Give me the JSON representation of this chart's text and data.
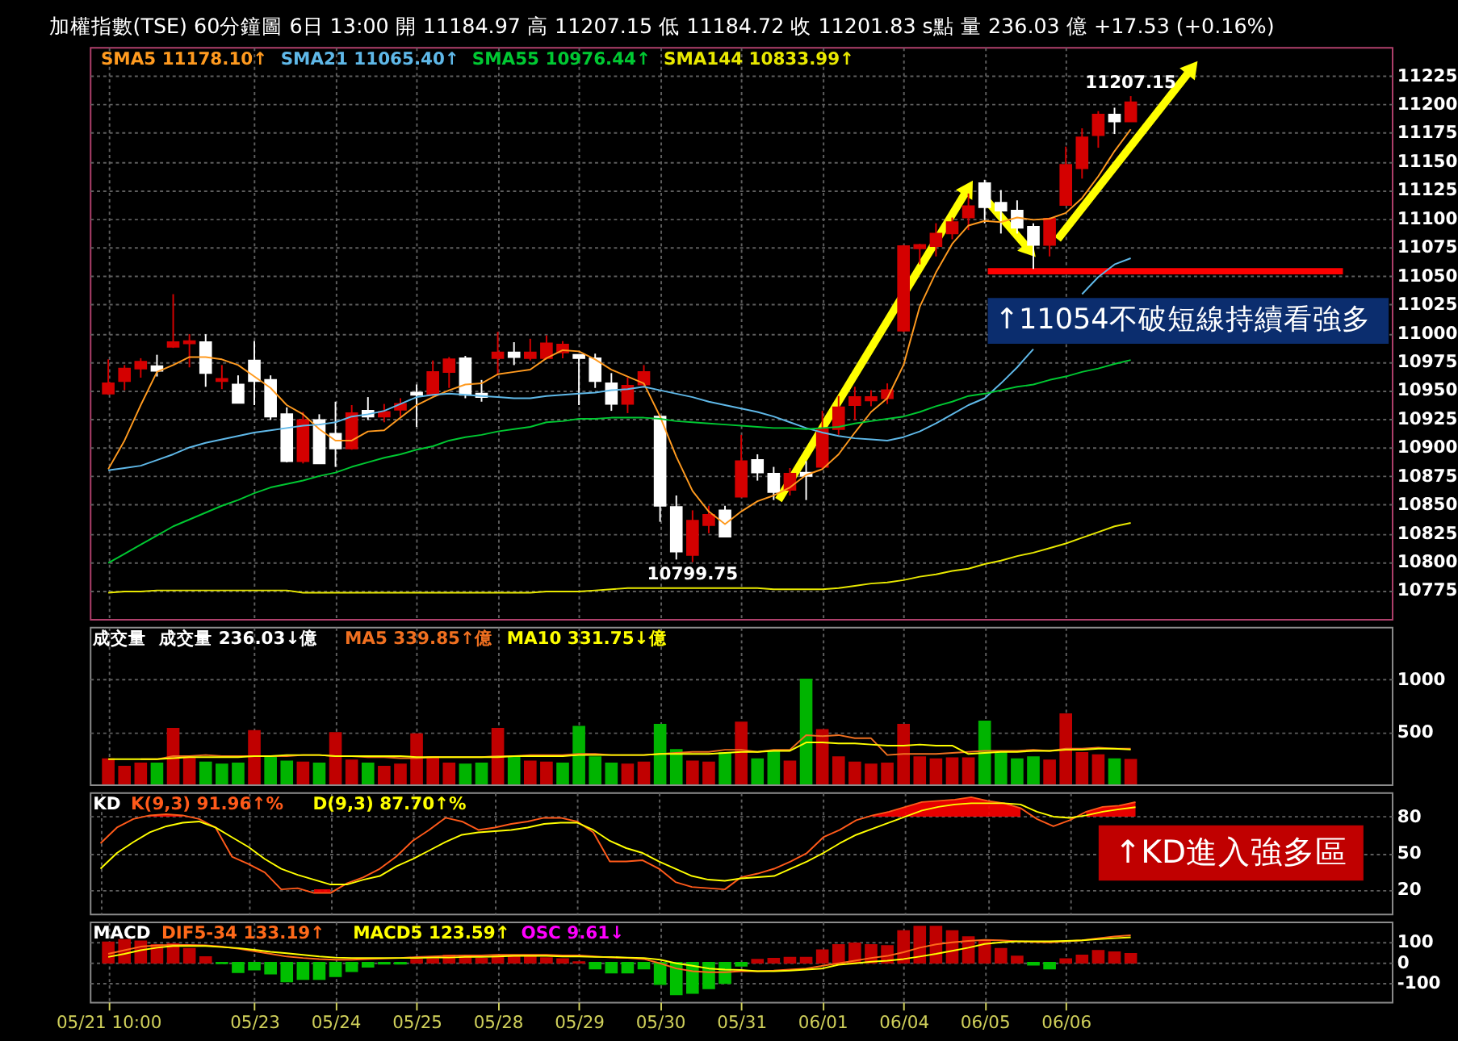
{
  "chart_data": [
    {
      "type": "candlestick",
      "title": "加權指數(TSE)  60分鐘圖  6日 13:00  開 11184.97  高 11207.15  低 11184.72  收 11201.83 s點  量 236.03 億  +17.53 (+0.16%)",
      "categories": [
        null,
        null,
        null,
        null,
        null,
        null,
        null,
        null,
        null,
        null,
        null,
        null,
        null,
        null,
        null,
        null,
        null,
        null,
        null,
        null,
        null,
        null,
        null,
        null,
        null,
        null,
        null,
        null,
        null,
        null,
        null,
        null,
        null,
        null,
        null,
        null,
        null,
        null,
        null,
        null,
        null,
        null,
        null,
        null,
        null,
        null,
        null,
        null,
        null,
        null,
        null,
        null,
        null,
        null,
        null,
        null,
        null,
        null,
        null,
        null,
        null,
        null,
        null,
        null
      ],
      "ohlc": [
        [
          10947,
          10977,
          10946,
          10956
        ],
        [
          10958,
          10972,
          10950,
          10969
        ],
        [
          10969,
          10978,
          10961,
          10975
        ],
        [
          10971,
          10981,
          10962,
          10967
        ],
        [
          10988,
          11034,
          10987,
          10992
        ],
        [
          10991,
          10999,
          10970,
          10993
        ],
        [
          10992,
          10999,
          10953,
          10965
        ],
        [
          10958,
          10972,
          10951,
          10960
        ],
        [
          10955,
          10963,
          10939,
          10939
        ],
        [
          10976,
          10993,
          10937,
          10958
        ],
        [
          10959,
          10963,
          10924,
          10927
        ],
        [
          10929,
          10935,
          10887,
          10888
        ],
        [
          10888,
          10931,
          10886,
          10924
        ],
        [
          10924,
          10929,
          10886,
          10886
        ],
        [
          10912,
          10940,
          10883,
          10899
        ],
        [
          10899,
          10937,
          10898,
          10930
        ],
        [
          10932,
          10944,
          10924,
          10927
        ],
        [
          10927,
          10938,
          10922,
          10931
        ],
        [
          10933,
          10943,
          10927,
          10938
        ],
        [
          10948,
          10955,
          10918,
          10946
        ],
        [
          10946,
          10976,
          10945,
          10966
        ],
        [
          10966,
          10979,
          10952,
          10977
        ],
        [
          10978,
          10980,
          10943,
          10946
        ],
        [
          10947,
          10959,
          10940,
          10944
        ],
        [
          10978,
          11001,
          10963,
          10983
        ],
        [
          10983,
          10992,
          10972,
          10979
        ],
        [
          10978,
          10995,
          10976,
          10983
        ],
        [
          10978,
          10998,
          10977,
          10991
        ],
        [
          10983,
          10993,
          10978,
          10990
        ],
        [
          10981,
          10981,
          10937,
          10978
        ],
        [
          10978,
          10982,
          10952,
          10958
        ],
        [
          10956,
          10965,
          10932,
          10938
        ],
        [
          10938,
          10961,
          10930,
          10954
        ],
        [
          10955,
          10972,
          10953,
          10966
        ],
        [
          10927,
          10927,
          10835,
          10849
        ],
        [
          10848,
          10858,
          10802,
          10809
        ],
        [
          10806,
          10845,
          10799.75,
          10836
        ],
        [
          10832,
          10849,
          10825,
          10841
        ],
        [
          10845,
          10849,
          10822,
          10822
        ],
        [
          10857,
          10911,
          10857,
          10888
        ],
        [
          10889,
          10894,
          10871,
          10878
        ],
        [
          10877,
          10883,
          10854,
          10861
        ],
        [
          10863,
          10882,
          10858,
          10877
        ],
        [
          10878,
          10888,
          10854,
          10875
        ],
        [
          10883,
          10932,
          10881,
          10916
        ],
        [
          10916,
          10945,
          10911,
          10935
        ],
        [
          10937,
          10953,
          10924,
          10944
        ],
        [
          10941,
          10950,
          10936,
          10944
        ],
        [
          10943,
          10956,
          10938,
          10950
        ],
        [
          11002,
          11077,
          11001,
          11076
        ],
        [
          11074,
          11078,
          11060,
          11077
        ],
        [
          11076,
          11096,
          11067,
          11087
        ],
        [
          11087,
          11101,
          11082,
          11097
        ],
        [
          11101,
          11122,
          11090,
          11111
        ],
        [
          11131,
          11134,
          11096,
          11110
        ],
        [
          11114,
          11125,
          11087,
          11107
        ],
        [
          11107,
          11116,
          11087,
          11092
        ],
        [
          11093,
          11096,
          11056,
          11077
        ],
        [
          11077,
          11101,
          11067,
          11100
        ],
        [
          11112,
          11163,
          11112,
          11147
        ],
        [
          11144,
          11179,
          11135,
          11171
        ],
        [
          11173,
          11194,
          11162,
          11191
        ],
        [
          11191,
          11197,
          11174,
          11185
        ],
        [
          11184.97,
          11207.15,
          11184.72,
          11201.83
        ]
      ],
      "colors": [
        "#d40000",
        "#d40000",
        "#d40000",
        "#ffffff",
        "#d40000",
        "#d40000",
        "#ffffff",
        "#d40000",
        "#ffffff",
        "#ffffff",
        "#ffffff",
        "#ffffff",
        "#d40000",
        "#ffffff",
        "#ffffff",
        "#d40000",
        "#ffffff",
        "#d40000",
        "#d40000",
        "#ffffff",
        "#d40000",
        "#d40000",
        "#ffffff",
        "#ffffff",
        "#d40000",
        "#ffffff",
        "#d40000",
        "#d40000",
        "#d40000",
        "#ffffff",
        "#ffffff",
        "#ffffff",
        "#d40000",
        "#d40000",
        "#ffffff",
        "#ffffff",
        "#d40000",
        "#d40000",
        "#ffffff",
        "#d40000",
        "#ffffff",
        "#ffffff",
        "#d40000",
        "#ffffff",
        "#d40000",
        "#d40000",
        "#d40000",
        "#d40000",
        "#d40000",
        "#d40000",
        "#d40000",
        "#d40000",
        "#d40000",
        "#d40000",
        "#ffffff",
        "#ffffff",
        "#ffffff",
        "#ffffff",
        "#d40000",
        "#d40000",
        "#d40000",
        "#d40000",
        "#ffffff",
        "#d40000"
      ],
      "series": [
        {
          "name": "SMA5 11178.10↑",
          "type": "line",
          "color": "#ff9a1f",
          "values": [
            10881,
            10906,
            10937,
            10966,
            10972,
            10979,
            10979,
            10977,
            10972,
            10962,
            10952,
            10937,
            10929,
            10916,
            10906,
            10906,
            10914,
            10915,
            10926,
            10937,
            10944,
            10950,
            10955,
            10956,
            10964,
            10966,
            10968,
            10978,
            10985,
            10984,
            10977,
            10968,
            10962,
            10956,
            10927,
            10892,
            10862,
            10844,
            10833,
            10844,
            10853,
            10858,
            10865,
            10876,
            10881,
            10894,
            10913,
            10931,
            10943,
            10972,
            11023,
            11053,
            11078,
            11094,
            11098,
            11097,
            11101,
            11099,
            11100,
            11105,
            11118,
            11137,
            11159,
            11178.1
          ]
        },
        {
          "name": "SMA21 11065.40↑",
          "type": "line",
          "color": "#5fb8e8",
          "values": [
            10880,
            10882,
            10884,
            10889,
            10894,
            10900,
            10904,
            10907,
            10910,
            10913,
            10915,
            10917,
            10919,
            10920,
            10922,
            10927,
            10929,
            10932,
            10938,
            10944,
            10946,
            10947,
            10946,
            10945,
            10944,
            10943,
            10943,
            10945,
            10946,
            10947,
            10948,
            10950,
            10951,
            10953,
            10950,
            10947,
            10944,
            10940,
            10937,
            10934,
            10931,
            10927,
            10922,
            10917,
            10913,
            10910,
            10908,
            10907,
            10906,
            10909,
            10914,
            10921,
            10929,
            10937,
            10943,
            10956,
            10970,
            10986,
            null,
            null,
            11034,
            11049,
            11060,
            11065.4
          ]
        },
        {
          "name": "SMA55 10976.44↑",
          "type": "line",
          "color": "#00c832",
          "values": [
            10799,
            10807,
            10815,
            10823,
            10831,
            10837,
            10843,
            10849,
            10854,
            10860,
            10865,
            10868,
            10871,
            10875,
            10878,
            10883,
            10887,
            10891,
            10894,
            10898,
            10901,
            10906,
            10909,
            10911,
            10914,
            10916,
            10918,
            10922,
            10923,
            10925,
            10925,
            10926,
            10926,
            10926,
            10925,
            10923,
            10922,
            10921,
            10920,
            10919,
            10918,
            10917,
            10917,
            10916,
            10917,
            10918,
            10921,
            10923,
            10925,
            10927,
            10931,
            10936,
            10940,
            10945,
            10947,
            10950,
            10953,
            10955,
            10959,
            10962,
            10966,
            10969,
            10973,
            10976.44
          ]
        },
        {
          "name": "SMA144 10833.99↑",
          "type": "line",
          "color": "#e8e800",
          "values": [
            10773,
            10774,
            10774,
            10775,
            10775,
            10775,
            10775,
            10775,
            10775,
            10775,
            10775,
            10775,
            10773,
            10773,
            10773,
            10773,
            10773,
            10773,
            10773,
            10773,
            10773,
            10773,
            10773,
            10773,
            10773,
            10773,
            10773,
            10774,
            10774,
            10774,
            10775,
            10776,
            10777,
            10777,
            10777,
            10777,
            10777,
            10777,
            10777,
            10777,
            10777,
            10776,
            10776,
            10776,
            10776,
            10777,
            10779,
            10781,
            10782,
            10784,
            10787,
            10789,
            10792,
            10794,
            10798,
            10801,
            10805,
            10808,
            10812,
            10816,
            10821,
            10826,
            10831,
            10833.99
          ]
        }
      ],
      "ylim": [
        10750,
        11250
      ],
      "yticks": [
        10775,
        10800,
        10825,
        10850,
        10875,
        10900,
        10925,
        10950,
        10975,
        11000,
        11025,
        11050,
        11075,
        11100,
        11125,
        11150,
        11175,
        11200,
        11225
      ],
      "grid": true,
      "legend": "top left",
      "tick_labels": "y",
      "annotations": [
        {
          "text": "11207.15",
          "y": 11207.15
        },
        {
          "text": "10799.75",
          "y": 10799.75
        },
        {
          "text": "↑11054不破短線持續看強多",
          "y": 11054
        }
      ],
      "ref_lines": [
        {
          "axis": "y",
          "value": 11054,
          "color": "#ff0000"
        }
      ]
    },
    {
      "type": "bar",
      "title": "成交量",
      "subtitle": "成交量 236.03↓億",
      "categories": [
        null,
        null,
        null,
        null,
        null,
        null,
        null,
        null,
        null,
        null,
        null,
        null,
        null,
        null,
        null,
        null,
        null,
        null,
        null,
        null,
        null,
        null,
        null,
        null,
        null,
        null,
        null,
        null,
        null,
        null,
        null,
        null,
        null,
        null,
        null,
        null,
        null,
        null,
        null,
        null,
        null,
        null,
        null,
        null,
        null,
        null,
        null,
        null,
        null,
        null,
        null,
        null,
        null,
        null,
        null,
        null,
        null,
        null,
        null,
        null,
        null,
        null,
        null,
        null
      ],
      "series": [
        {
          "values": [
            240,
            170,
            200,
            200,
            530,
            250,
            210,
            190,
            200,
            510,
            260,
            220,
            210,
            200,
            490,
            230,
            200,
            170,
            190,
            480,
            260,
            200,
            190,
            200,
            530,
            260,
            220,
            210,
            200,
            550,
            260,
            200,
            190,
            210,
            570,
            330,
            220,
            210,
            300,
            590,
            240,
            320,
            220,
            1000,
            520,
            260,
            210,
            190,
            200,
            570,
            260,
            240,
            250,
            250,
            600,
            300,
            240,
            260,
            230,
            670,
            300,
            280,
            240,
            236.03
          ],
          "colors": [
            "#c00000",
            "#c00000",
            "#c00000",
            "#00b400",
            "#c00000",
            "#c00000",
            "#00b400",
            "#00b400",
            "#00b400",
            "#c00000",
            "#00b400",
            "#00b400",
            "#c00000",
            "#00b400",
            "#c00000",
            "#c00000",
            "#00b400",
            "#c00000",
            "#c00000",
            "#c00000",
            "#c00000",
            "#c00000",
            "#00b400",
            "#00b400",
            "#c00000",
            "#00b400",
            "#c00000",
            "#c00000",
            "#00b400",
            "#00b400",
            "#00b400",
            "#00b400",
            "#c00000",
            "#c00000",
            "#00b400",
            "#00b400",
            "#c00000",
            "#c00000",
            "#00b400",
            "#c00000",
            "#00b400",
            "#00b400",
            "#c00000",
            "#00b400",
            "#c00000",
            "#c00000",
            "#c00000",
            "#c00000",
            "#c00000",
            "#c00000",
            "#c00000",
            "#c00000",
            "#c00000",
            "#c00000",
            "#00b400",
            "#00b400",
            "#00b400",
            "#00b400",
            "#c00000",
            "#c00000",
            "#c00000",
            "#c00000",
            "#00b400",
            "#c00000"
          ]
        },
        {
          "name": "MA5 339.85↑億",
          "type": "line",
          "color": "#f07020",
          "values": [
            null,
            null,
            240,
            240,
            270,
            270,
            280,
            270,
            270,
            270,
            270,
            270,
            280,
            280,
            270,
            270,
            260,
            260,
            250,
            250,
            260,
            260,
            260,
            260,
            270,
            270,
            280,
            280,
            280,
            290,
            290,
            280,
            280,
            280,
            290,
            300,
            310,
            310,
            330,
            330,
            310,
            330,
            330,
            470,
            460,
            470,
            440,
            440,
            280,
            290,
            290,
            290,
            300,
            310,
            320,
            320,
            320,
            330,
            320,
            340,
            340,
            350,
            340,
            339.85
          ]
        },
        {
          "name": "MA10 331.75↓億",
          "type": "line",
          "color": "#ffff00",
          "values": [
            240,
            240,
            240,
            240,
            250,
            260,
            260,
            260,
            260,
            270,
            270,
            280,
            280,
            280,
            270,
            270,
            270,
            270,
            270,
            260,
            260,
            260,
            260,
            260,
            260,
            270,
            270,
            270,
            270,
            280,
            280,
            280,
            280,
            280,
            290,
            290,
            290,
            290,
            300,
            310,
            310,
            320,
            320,
            400,
            400,
            390,
            390,
            380,
            370,
            370,
            380,
            370,
            370,
            290,
            300,
            310,
            310,
            320,
            320,
            330,
            330,
            340,
            340,
            331.75
          ]
        }
      ],
      "ylim": [
        0,
        1500
      ],
      "yticks": [
        500,
        1000
      ],
      "grid": true,
      "legend": "top left",
      "tick_labels": "y"
    },
    {
      "type": "line",
      "title": "KD",
      "categories": [
        null,
        null,
        null,
        null,
        null,
        null,
        null,
        null,
        null,
        null,
        null,
        null,
        null,
        null,
        null,
        null,
        null,
        null,
        null,
        null,
        null,
        null,
        null,
        null,
        null,
        null,
        null,
        null,
        null,
        null,
        null,
        null,
        null,
        null,
        null,
        null,
        null,
        null,
        null,
        null,
        null,
        null,
        null,
        null,
        null,
        null,
        null,
        null,
        null,
        null,
        null,
        null,
        null,
        null,
        null,
        null,
        null,
        null,
        null,
        null,
        null,
        null,
        null,
        null
      ],
      "series": [
        {
          "name": "K(9,3) 91.96↑%",
          "color": "#ff5a1a",
          "values": [
            58,
            71,
            78,
            81,
            82,
            81,
            78,
            71,
            47,
            41,
            34,
            20,
            21,
            17,
            17,
            25,
            30,
            37,
            47,
            60,
            69,
            79,
            76,
            69,
            71,
            74,
            76,
            79,
            79,
            76,
            67,
            43,
            43,
            44,
            37,
            26,
            22,
            21,
            20,
            30,
            33,
            37,
            43,
            50,
            63,
            69,
            77,
            81,
            84,
            88,
            92,
            93,
            94,
            96,
            93,
            91,
            87,
            78,
            72,
            77,
            84,
            88,
            89,
            91.96
          ],
          "lower": [
            null,
            null,
            null,
            80,
            80,
            80,
            null,
            null,
            null,
            null,
            null,
            null,
            null,
            17,
            17,
            null,
            null,
            null,
            null,
            null,
            null,
            null,
            null,
            null,
            null,
            null,
            null,
            null,
            null,
            null,
            null,
            null,
            null,
            null,
            null,
            null,
            null,
            null,
            null,
            null,
            null,
            null,
            null,
            null,
            null,
            null,
            null,
            80,
            80,
            80,
            80,
            80,
            80,
            80,
            80,
            80,
            80,
            null,
            null,
            null,
            80,
            80,
            80,
            80
          ],
          "upper": [
            null,
            null,
            null,
            81,
            82,
            81,
            null,
            null,
            null,
            null,
            null,
            null,
            null,
            20,
            20,
            null,
            null,
            null,
            null,
            null,
            null,
            null,
            null,
            null,
            null,
            null,
            null,
            null,
            null,
            null,
            null,
            null,
            null,
            null,
            null,
            null,
            null,
            null,
            null,
            null,
            null,
            null,
            null,
            null,
            null,
            null,
            null,
            81,
            84,
            88,
            92,
            93,
            94,
            96,
            93,
            91,
            87,
            null,
            null,
            null,
            84,
            88,
            89,
            91.96
          ]
        },
        {
          "name": "D(9,3) 87.70↑%",
          "color": "#ffff00",
          "values": [
            37,
            50,
            59,
            67,
            72,
            75,
            76,
            71,
            63,
            55,
            45,
            37,
            32,
            28,
            24,
            24,
            28,
            31,
            39,
            45,
            52,
            59,
            65,
            67,
            68,
            69,
            71,
            74,
            75,
            75,
            69,
            60,
            54,
            50,
            43,
            37,
            31,
            28,
            27,
            29,
            30,
            31,
            37,
            43,
            50,
            58,
            65,
            70,
            75,
            80,
            85,
            88,
            90,
            91,
            91,
            91,
            90,
            84,
            80,
            79,
            81,
            84,
            86,
            87.7
          ]
        }
      ],
      "ylim": [
        0,
        100
      ],
      "yticks": [
        20,
        50,
        80
      ],
      "grid": true,
      "legend": "top left",
      "tick_labels": "y",
      "annotations": [
        "↑KD進入強多區"
      ]
    },
    {
      "type": "bar",
      "title": "MACD",
      "categories": [
        "05/21 10:00",
        null,
        null,
        null,
        null,
        null,
        null,
        null,
        null,
        "05/23",
        null,
        null,
        null,
        null,
        "05/24",
        null,
        null,
        null,
        null,
        "05/25",
        null,
        null,
        null,
        null,
        "05/28",
        null,
        null,
        null,
        null,
        "05/29",
        null,
        null,
        null,
        null,
        "05/30",
        null,
        null,
        null,
        null,
        "05/31",
        null,
        null,
        null,
        null,
        "06/01",
        null,
        null,
        null,
        null,
        "06/04",
        null,
        null,
        null,
        null,
        "06/05",
        null,
        null,
        null,
        null,
        "06/06",
        null,
        null,
        null,
        null
      ],
      "series": [
        {
          "name": "DIF5-34 133.19↑",
          "type": "line",
          "color": "#ff6a1a",
          "values": [
            43,
            61,
            78,
            84,
            86,
            86,
            84,
            78,
            68,
            56,
            43,
            30,
            23,
            18,
            15,
            15,
            18,
            20,
            23,
            28,
            30,
            33,
            35,
            35,
            38,
            38,
            38,
            38,
            35,
            35,
            30,
            25,
            23,
            18,
            -3,
            -28,
            -41,
            -46,
            -46,
            -41,
            -41,
            -38,
            -33,
            -28,
            -15,
            -3,
            10,
            23,
            33,
            51,
            73,
            89,
            99,
            106,
            111,
            109,
            104,
            101,
            99,
            104,
            109,
            119,
            127,
            133.19
          ]
        },
        {
          "name": "MACD5 123.59↑",
          "type": "line",
          "color": "#ffff00",
          "values": [
            28,
            43,
            61,
            73,
            81,
            81,
            81,
            76,
            71,
            63,
            53,
            46,
            38,
            30,
            25,
            23,
            23,
            23,
            23,
            23,
            25,
            25,
            28,
            28,
            30,
            33,
            33,
            33,
            30,
            30,
            28,
            28,
            25,
            23,
            15,
            -3,
            -15,
            -28,
            -33,
            -35,
            -41,
            -41,
            -38,
            -33,
            -28,
            -10,
            -3,
            5,
            10,
            18,
            30,
            43,
            58,
            73,
            91,
            99,
            104,
            104,
            104,
            106,
            109,
            114,
            119,
            123.59
          ]
        },
        {
          "name": "OSC 9.61↓",
          "color": "#ff00ff",
          "values": [
            99,
            111,
            104,
            86,
            91,
            68,
            28,
            -3,
            -46,
            -33,
            -53,
            -91,
            -79,
            -79,
            -66,
            -41,
            -20,
            -5,
            -5,
            15,
            18,
            35,
            30,
            20,
            35,
            30,
            35,
            23,
            18,
            3,
            -28,
            -48,
            -48,
            -28,
            -104,
            -154,
            -147,
            -124,
            -99,
            -15,
            15,
            20,
            25,
            25,
            61,
            86,
            94,
            86,
            81,
            154,
            175,
            175,
            154,
            124,
            104,
            68,
            30,
            -10,
            -28,
            18,
            35,
            58,
            51,
            43
          ],
          "colors": [
            "#c00000",
            "#c00000",
            "#c00000",
            "#c00000",
            "#c00000",
            "#c00000",
            "#c00000",
            "#00c000",
            "#00c000",
            "#00c000",
            "#00c000",
            "#00c000",
            "#00c000",
            "#00c000",
            "#00c000",
            "#00c000",
            "#00c000",
            "#00c000",
            "#00c000",
            "#c00000",
            "#c00000",
            "#c00000",
            "#c00000",
            "#c00000",
            "#c00000",
            "#c00000",
            "#c00000",
            "#c00000",
            "#c00000",
            "#c00000",
            "#00c000",
            "#00c000",
            "#00c000",
            "#00c000",
            "#00c000",
            "#00c000",
            "#00c000",
            "#00c000",
            "#00c000",
            "#00c000",
            "#c00000",
            "#c00000",
            "#c00000",
            "#c00000",
            "#c00000",
            "#c00000",
            "#c00000",
            "#c00000",
            "#c00000",
            "#c00000",
            "#c00000",
            "#c00000",
            "#c00000",
            "#c00000",
            "#c00000",
            "#c00000",
            "#c00000",
            "#00c000",
            "#00c000",
            "#c00000",
            "#c00000",
            "#c00000",
            "#c00000",
            "#c00000"
          ]
        }
      ],
      "ylim": [
        -190,
        200
      ],
      "yticks": [
        -100,
        0,
        100
      ],
      "grid": true,
      "legend": "top left"
    }
  ]
}
